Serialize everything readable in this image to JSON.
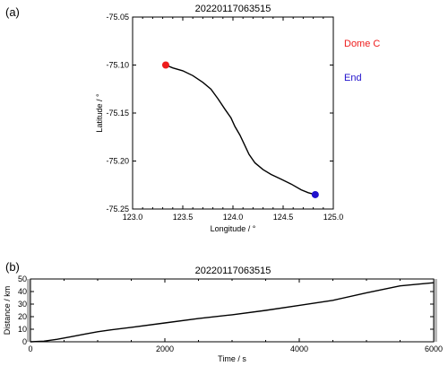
{
  "chart_data": [
    {
      "type": "line",
      "panel_label": "(a)",
      "title": "20220117063515",
      "xlabel": "Longitude / °",
      "ylabel": "Latitude / °",
      "xlim": [
        123.0,
        125.0
      ],
      "ylim": [
        -75.25,
        -75.05
      ],
      "xticks": [
        "123.0",
        "123.5",
        "124.0",
        "124.5",
        "125.0"
      ],
      "xtick_values": [
        123.0,
        123.5,
        124.0,
        124.5,
        125.0
      ],
      "yticks": [
        "-75.05",
        "-75.10",
        "-75.15",
        "-75.20",
        "-75.25"
      ],
      "ytick_values": [
        -75.05,
        -75.1,
        -75.15,
        -75.2,
        -75.25
      ],
      "series": [
        {
          "x": [
            123.33,
            123.4,
            123.5,
            123.6,
            123.7,
            123.78,
            123.85,
            123.92,
            123.98,
            124.02,
            124.07,
            124.12,
            124.16,
            124.22,
            124.3,
            124.38,
            124.48,
            124.58,
            124.68,
            124.75,
            124.82
          ],
          "y": [
            -75.1,
            -75.103,
            -75.106,
            -75.111,
            -75.118,
            -75.125,
            -75.135,
            -75.146,
            -75.155,
            -75.164,
            -75.173,
            -75.184,
            -75.193,
            -75.202,
            -75.209,
            -75.214,
            -75.219,
            -75.224,
            -75.23,
            -75.233,
            -75.235
          ]
        }
      ],
      "start_point": {
        "label": "Dome C",
        "x": 123.33,
        "y": -75.1,
        "color": "#ee1c1c"
      },
      "end_point": {
        "label": "End",
        "x": 124.82,
        "y": -75.235,
        "color": "#2010cc"
      }
    },
    {
      "type": "line",
      "panel_label": "(b)",
      "title": "20220117063515",
      "xlabel": "Time / s",
      "ylabel": "Distance / km",
      "xlim": [
        0,
        6000
      ],
      "ylim": [
        0,
        50
      ],
      "xticks": [
        "0",
        "2000",
        "4000",
        "6000"
      ],
      "xtick_values": [
        0,
        2000,
        4000,
        6000
      ],
      "yticks": [
        "0",
        "10",
        "20",
        "30",
        "40",
        "50"
      ],
      "ytick_values": [
        0,
        10,
        20,
        30,
        40,
        50
      ],
      "series": [
        {
          "x": [
            0,
            200,
            400,
            600,
            800,
            1000,
            1200,
            1500,
            2000,
            2500,
            3000,
            3500,
            4000,
            4500,
            5000,
            5500,
            5800,
            6000
          ],
          "y": [
            0,
            0.5,
            2,
            4,
            6,
            8,
            9.5,
            11.5,
            15,
            18.5,
            21.5,
            25,
            29,
            33,
            39,
            44.5,
            46,
            47
          ]
        }
      ]
    }
  ]
}
